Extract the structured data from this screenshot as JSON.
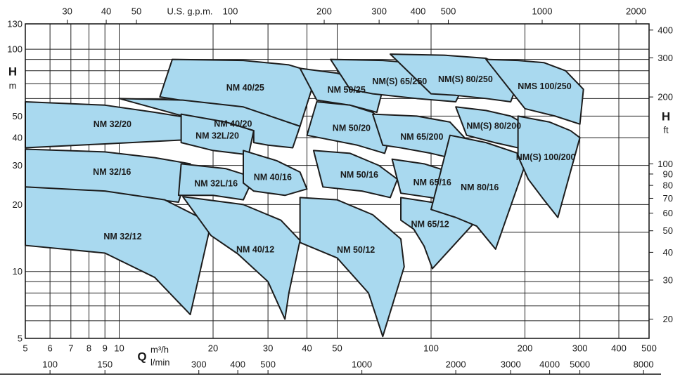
{
  "chart_data": {
    "type": "region",
    "log_scale": true,
    "grid": true,
    "fill": "#a9d9ef",
    "stroke": "#1c1c1c",
    "xlabel": "Q",
    "xunit": "m³/h",
    "xlim": [
      5,
      500
    ],
    "xticks": [
      5,
      6,
      7,
      8,
      9,
      10,
      20,
      30,
      40,
      50,
      100,
      200,
      300,
      400,
      500
    ],
    "x2unit": "l/min",
    "x2lim": [
      83.33,
      8333.3
    ],
    "x2ticks": [
      100,
      150,
      300,
      400,
      500,
      1000,
      2000,
      3000,
      4000,
      5000,
      8000
    ],
    "x3unit": "U.S. g.p.m.",
    "x3lim": [
      22.01,
      2201.5
    ],
    "x3ticks": [
      30,
      40,
      50,
      100,
      200,
      300,
      400,
      500,
      1000,
      2000
    ],
    "ylabel": "H",
    "yunit": "m",
    "ylim": [
      5,
      130
    ],
    "yticks": [
      5,
      10,
      20,
      30,
      40,
      50,
      100,
      130
    ],
    "yminor": [
      6,
      7,
      8,
      9,
      15,
      60,
      70,
      80,
      90
    ],
    "y2label": "H",
    "y2unit": "ft",
    "y2lim": [
      16.4,
      426.5
    ],
    "y2ticks": [
      20,
      30,
      40,
      50,
      60,
      70,
      80,
      90,
      100,
      200,
      300,
      400
    ],
    "regions": [
      {
        "name": "NM 32/20",
        "points": [
          [
            5,
            58
          ],
          [
            9,
            56
          ],
          [
            13,
            52
          ],
          [
            16.9,
            49
          ],
          [
            15.8,
            39
          ],
          [
            9,
            37.5
          ],
          [
            5,
            36
          ]
        ]
      },
      {
        "name": "NM 32/16",
        "points": [
          [
            5,
            35.5
          ],
          [
            9,
            34.5
          ],
          [
            13,
            32.5
          ],
          [
            16.9,
            30.5
          ],
          [
            15.5,
            20.5
          ],
          [
            9,
            22.5
          ],
          [
            5,
            24
          ]
        ]
      },
      {
        "name": "NM 32/12",
        "points": [
          [
            5,
            24
          ],
          [
            9,
            23
          ],
          [
            14,
            21
          ],
          [
            19.7,
            16.5
          ],
          [
            16.9,
            6.4
          ],
          [
            13,
            9.4
          ],
          [
            9,
            12.1
          ],
          [
            5,
            13.1
          ]
        ]
      },
      {
        "name": "NM 40/25",
        "points": [
          [
            14.8,
            90
          ],
          [
            25,
            89
          ],
          [
            35,
            85
          ],
          [
            43,
            78
          ],
          [
            38,
            45
          ],
          [
            30,
            50
          ],
          [
            20,
            56
          ],
          [
            13.5,
            61
          ]
        ]
      },
      {
        "name": "NM 40/20",
        "points": [
          [
            10,
            60
          ],
          [
            16,
            59
          ],
          [
            25,
            55
          ],
          [
            38,
            45
          ],
          [
            36,
            36
          ],
          [
            30,
            37
          ],
          [
            27,
            38
          ],
          [
            27,
            43
          ],
          [
            22,
            47
          ],
          [
            16.9,
            49
          ]
        ]
      },
      {
        "name": "NM 32L/20",
        "points": [
          [
            15.8,
            51
          ],
          [
            22,
            47
          ],
          [
            27,
            43
          ],
          [
            26,
            33.5
          ],
          [
            20,
            35
          ],
          [
            15.8,
            38
          ]
        ]
      },
      {
        "name": "NM 32L/16",
        "points": [
          [
            15.8,
            30.5
          ],
          [
            22,
            29
          ],
          [
            27,
            26.5
          ],
          [
            25,
            21
          ],
          [
            20,
            22
          ],
          [
            15.5,
            22
          ]
        ]
      },
      {
        "name": "NM 40/16",
        "points": [
          [
            25,
            35
          ],
          [
            32,
            31.5
          ],
          [
            38,
            28
          ],
          [
            40,
            23.5
          ],
          [
            34,
            22
          ],
          [
            27,
            23
          ],
          [
            25,
            25
          ]
        ]
      },
      {
        "name": "NM 40/12",
        "points": [
          [
            16,
            21.7
          ],
          [
            25,
            20
          ],
          [
            33,
            17
          ],
          [
            38,
            13.8
          ],
          [
            35,
            8
          ],
          [
            34,
            6.1
          ],
          [
            30,
            9
          ],
          [
            24,
            12
          ],
          [
            19.7,
            14.5
          ]
        ]
      },
      {
        "name": "NM 50/25",
        "points": [
          [
            38,
            82
          ],
          [
            50,
            78
          ],
          [
            60,
            72
          ],
          [
            70,
            66
          ],
          [
            67,
            52
          ],
          [
            55,
            56
          ],
          [
            43,
            59
          ]
        ]
      },
      {
        "name": "NM 50/20",
        "points": [
          [
            43,
            58
          ],
          [
            55,
            56
          ],
          [
            65,
            52
          ],
          [
            75,
            43
          ],
          [
            71,
            34
          ],
          [
            58,
            37
          ],
          [
            48,
            39
          ],
          [
            40,
            41
          ]
        ]
      },
      {
        "name": "NM 50/16",
        "points": [
          [
            42,
            35
          ],
          [
            55,
            34
          ],
          [
            68,
            30
          ],
          [
            78,
            26
          ],
          [
            74,
            21.5
          ],
          [
            60,
            23
          ],
          [
            45,
            24
          ]
        ]
      },
      {
        "name": "NM 50/12",
        "points": [
          [
            38,
            21.5
          ],
          [
            50,
            21
          ],
          [
            65,
            18
          ],
          [
            80,
            14
          ],
          [
            82,
            10.5
          ],
          [
            70,
            5.1
          ],
          [
            63,
            8
          ],
          [
            50,
            11.5
          ],
          [
            38,
            13.5
          ]
        ]
      },
      {
        "name": "NM(S) 65/250",
        "points": [
          [
            47.6,
            90
          ],
          [
            70,
            89
          ],
          [
            95,
            86
          ],
          [
            128,
            70
          ],
          [
            120,
            58
          ],
          [
            90,
            60
          ],
          [
            65,
            63
          ],
          [
            55,
            66
          ]
        ]
      },
      {
        "name": "NM 65/200",
        "points": [
          [
            65,
            51
          ],
          [
            90,
            50
          ],
          [
            115,
            47
          ],
          [
            128,
            40
          ],
          [
            120,
            32
          ],
          [
            100,
            34
          ],
          [
            80,
            36
          ],
          [
            70,
            37
          ]
        ]
      },
      {
        "name": "NM 65/16",
        "points": [
          [
            75,
            32
          ],
          [
            95,
            30.5
          ],
          [
            115,
            28
          ],
          [
            130,
            24
          ],
          [
            125,
            20
          ],
          [
            100,
            21.5
          ],
          [
            80,
            22.5
          ]
        ]
      },
      {
        "name": "NM 65/12",
        "points": [
          [
            80,
            21.5
          ],
          [
            100,
            20.5
          ],
          [
            125,
            19
          ],
          [
            140,
            17
          ],
          [
            101,
            10.3
          ],
          [
            95,
            13
          ],
          [
            88,
            15.5
          ],
          [
            80,
            17
          ]
        ]
      },
      {
        "name": "NM(S) 80/250",
        "points": [
          [
            74,
            95
          ],
          [
            110,
            94
          ],
          [
            150,
            91
          ],
          [
            193,
            75
          ],
          [
            180,
            58
          ],
          [
            150,
            60
          ],
          [
            120,
            62
          ],
          [
            100,
            63
          ]
        ]
      },
      {
        "name": "NM(S) 80/200",
        "points": [
          [
            120,
            55
          ],
          [
            150,
            53
          ],
          [
            180,
            50
          ],
          [
            200,
            46
          ],
          [
            190,
            36
          ],
          [
            160,
            38
          ],
          [
            130,
            41
          ]
        ]
      },
      {
        "name": "NM 80/16",
        "points": [
          [
            115,
            41
          ],
          [
            150,
            38
          ],
          [
            190,
            34
          ],
          [
            200,
            30
          ],
          [
            161,
            12.6
          ],
          [
            140,
            16
          ],
          [
            120,
            17.5
          ],
          [
            100,
            19
          ]
        ]
      },
      {
        "name": "NMS 100/250",
        "points": [
          [
            150,
            90
          ],
          [
            190,
            89
          ],
          [
            230,
            87
          ],
          [
            270,
            80
          ],
          [
            308,
            66
          ],
          [
            300,
            46
          ],
          [
            250,
            50
          ],
          [
            200,
            54
          ]
        ]
      },
      {
        "name": "NM(S) 100/200",
        "points": [
          [
            190,
            50
          ],
          [
            240,
            47
          ],
          [
            280,
            43
          ],
          [
            300,
            40
          ],
          [
            255,
            17.5
          ],
          [
            230,
            21
          ],
          [
            205,
            26
          ],
          [
            190,
            33
          ]
        ]
      }
    ]
  }
}
